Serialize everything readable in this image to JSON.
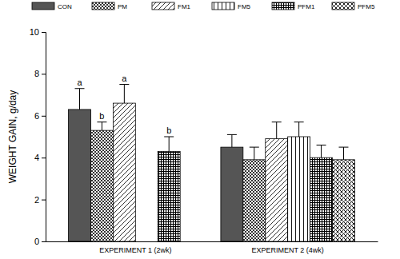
{
  "chart_data": {
    "type": "bar",
    "y_label": "WEIGHT GAIN, g/day",
    "categories": [
      "EXPERIMENT 1 (2wk)",
      "EXPERIMENT 2 (4wk)"
    ],
    "series": [
      {
        "name": "CON",
        "color": "#555555",
        "values": [
          6.3,
          4.5
        ],
        "errors": [
          1.0,
          0.6
        ],
        "letters": [
          "a",
          null
        ]
      },
      {
        "name": "PM",
        "color": "#000000",
        "values": [
          5.3,
          3.9
        ],
        "errors": [
          0.4,
          0.6
        ],
        "letters": [
          "b",
          null
        ]
      },
      {
        "name": "FM1",
        "color": "#000000",
        "values": [
          6.6,
          4.9
        ],
        "errors": [
          0.9,
          0.8
        ],
        "letters": [
          "a",
          null
        ]
      },
      {
        "name": "FM5",
        "color": "#000000",
        "values": [
          null,
          5.0
        ],
        "errors": [
          null,
          0.7
        ],
        "letters": [
          null,
          null
        ]
      },
      {
        "name": "PFM1",
        "color": "#000000",
        "values": [
          4.3,
          4.0
        ],
        "errors": [
          0.7,
          0.6
        ],
        "letters": [
          "b",
          null
        ]
      },
      {
        "name": "PFM5",
        "color": "#000000",
        "values": [
          null,
          3.9
        ],
        "errors": [
          null,
          0.6
        ],
        "letters": [
          null,
          null
        ]
      }
    ],
    "ylim": [
      0,
      10
    ],
    "yticks": [
      0,
      2,
      4,
      6,
      8,
      10
    ],
    "legend": "top",
    "grid": false
  }
}
